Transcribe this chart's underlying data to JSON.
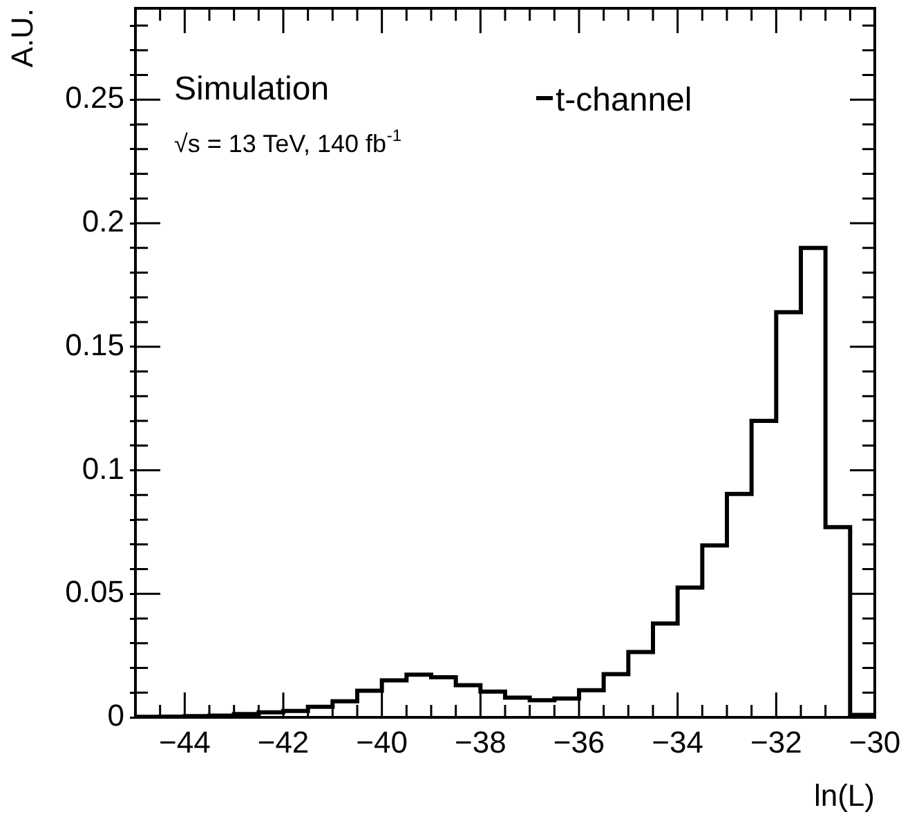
{
  "chart_data": {
    "type": "histogram",
    "xlabel": "ln(L)",
    "ylabel": "A.U.",
    "annotations": [
      "Simulation",
      "√s = 13 TeV, 140 fb$^{-1}$"
    ],
    "bins": [
      -45,
      -44.5,
      -44,
      -43.5,
      -43,
      -42.5,
      -42,
      -41.5,
      -41,
      -40.5,
      -40,
      -39.5,
      -39,
      -38.5,
      -38,
      -37.5,
      -37,
      -36.5,
      -36,
      -35.5,
      -35,
      -34.5,
      -34,
      -33.5,
      -33,
      -32.5,
      -32,
      -31.5,
      -31,
      -30.5,
      -30
    ],
    "series": [
      {
        "name": "t-channel",
        "color": "#000000",
        "values": [
          0.0002,
          0.0003,
          0.0005,
          0.0007,
          0.0013,
          0.002,
          0.0026,
          0.0043,
          0.0065,
          0.0108,
          0.015,
          0.0173,
          0.0162,
          0.013,
          0.0104,
          0.008,
          0.0069,
          0.0076,
          0.011,
          0.0175,
          0.0264,
          0.038,
          0.0525,
          0.0696,
          0.0904,
          0.12,
          0.164,
          0.19,
          0.077,
          0.001
        ]
      }
    ],
    "xlim": [
      -45,
      -30
    ],
    "xticks": [
      {
        "value": -45,
        "label": null
      },
      {
        "value": -44.5,
        "label": null
      },
      {
        "value": -44,
        "label": "−44"
      },
      {
        "value": -43.5,
        "label": null
      },
      {
        "value": -43,
        "label": null
      },
      {
        "value": -42.5,
        "label": null
      },
      {
        "value": -42,
        "label": "−42"
      },
      {
        "value": -41.5,
        "label": null
      },
      {
        "value": -41,
        "label": null
      },
      {
        "value": -40.5,
        "label": null
      },
      {
        "value": -40,
        "label": "−40"
      },
      {
        "value": -39.5,
        "label": null
      },
      {
        "value": -39,
        "label": null
      },
      {
        "value": -38.5,
        "label": null
      },
      {
        "value": -38,
        "label": "−38"
      },
      {
        "value": -37.5,
        "label": null
      },
      {
        "value": -37,
        "label": null
      },
      {
        "value": -36.5,
        "label": null
      },
      {
        "value": -36,
        "label": "−36"
      },
      {
        "value": -35.5,
        "label": null
      },
      {
        "value": -35,
        "label": null
      },
      {
        "value": -34.5,
        "label": null
      },
      {
        "value": -34,
        "label": "−34"
      },
      {
        "value": -33.5,
        "label": null
      },
      {
        "value": -33,
        "label": null
      },
      {
        "value": -32.5,
        "label": null
      },
      {
        "value": -32,
        "label": "−32"
      },
      {
        "value": -31.5,
        "label": null
      },
      {
        "value": -31,
        "label": null
      },
      {
        "value": -30.5,
        "label": null
      },
      {
        "value": -30,
        "label": "−30"
      }
    ],
    "ylim": [
      0,
      0.287
    ],
    "yticks": [
      0,
      {
        "value": 0.01,
        "label": null
      },
      {
        "value": 0.02,
        "label": null
      },
      {
        "value": 0.03,
        "label": null
      },
      {
        "value": 0.04,
        "label": null
      },
      0.05,
      {
        "value": 0.06,
        "label": null
      },
      {
        "value": 0.07,
        "label": null
      },
      {
        "value": 0.08,
        "label": null
      },
      {
        "value": 0.09,
        "label": null
      },
      0.1,
      {
        "value": 0.11,
        "label": null
      },
      {
        "value": 0.12,
        "label": null
      },
      {
        "value": 0.13,
        "label": null
      },
      {
        "value": 0.14,
        "label": null
      },
      0.15,
      {
        "value": 0.16,
        "label": null
      },
      {
        "value": 0.17,
        "label": null
      },
      {
        "value": 0.18,
        "label": null
      },
      {
        "value": 0.19,
        "label": null
      },
      0.2,
      {
        "value": 0.21,
        "label": null
      },
      {
        "value": 0.22,
        "label": null
      },
      {
        "value": 0.23,
        "label": null
      },
      {
        "value": 0.24,
        "label": null
      },
      0.25,
      {
        "value": 0.26,
        "label": null
      },
      {
        "value": 0.27,
        "label": null
      },
      {
        "value": 0.28,
        "label": null
      }
    ],
    "legend": "top right",
    "line_style": "solid",
    "marker": "none"
  }
}
